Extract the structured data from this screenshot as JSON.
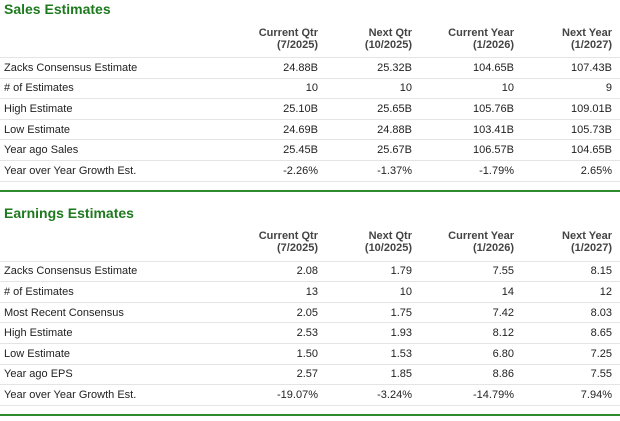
{
  "sections": [
    {
      "title": "Sales Estimates",
      "header": [
        [
          "Current Qtr",
          "(7/2025)"
        ],
        [
          "Next Qtr",
          "(10/2025)"
        ],
        [
          "Current Year",
          "(1/2026)"
        ],
        [
          "Next Year",
          "(1/2027)"
        ]
      ],
      "rows": [
        [
          "Zacks Consensus Estimate",
          "24.88B",
          "25.32B",
          "104.65B",
          "107.43B"
        ],
        [
          "# of Estimates",
          "10",
          "10",
          "10",
          "9"
        ],
        [
          "High Estimate",
          "25.10B",
          "25.65B",
          "105.76B",
          "109.01B"
        ],
        [
          "Low Estimate",
          "24.69B",
          "24.88B",
          "103.41B",
          "105.73B"
        ],
        [
          "Year ago Sales",
          "25.45B",
          "25.67B",
          "106.57B",
          "104.65B"
        ],
        [
          "Year over Year Growth Est.",
          "-2.26%",
          "-1.37%",
          "-1.79%",
          "2.65%"
        ]
      ]
    },
    {
      "title": "Earnings Estimates",
      "header": [
        [
          "Current Qtr",
          "(7/2025)"
        ],
        [
          "Next Qtr",
          "(10/2025)"
        ],
        [
          "Current Year",
          "(1/2026)"
        ],
        [
          "Next Year",
          "(1/2027)"
        ]
      ],
      "rows": [
        [
          "Zacks Consensus Estimate",
          "2.08",
          "1.79",
          "7.55",
          "8.15"
        ],
        [
          "# of Estimates",
          "13",
          "10",
          "14",
          "12"
        ],
        [
          "Most Recent Consensus",
          "2.05",
          "1.75",
          "7.42",
          "8.03"
        ],
        [
          "High Estimate",
          "2.53",
          "1.93",
          "8.12",
          "8.65"
        ],
        [
          "Low Estimate",
          "1.50",
          "1.53",
          "6.80",
          "7.25"
        ],
        [
          "Year ago EPS",
          "2.57",
          "1.85",
          "8.86",
          "7.55"
        ],
        [
          "Year over Year Growth Est.",
          "-19.07%",
          "-3.24%",
          "-14.79%",
          "7.94%"
        ]
      ]
    }
  ]
}
